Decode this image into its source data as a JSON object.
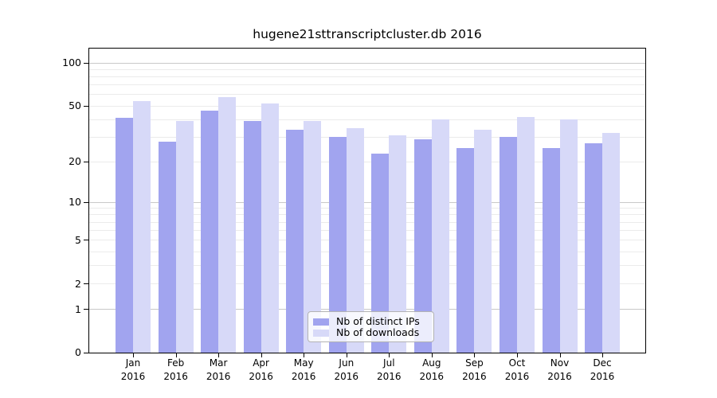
{
  "chart_data": {
    "type": "bar",
    "title": "hugene21sttranscriptcluster.db 2016",
    "categories": [
      "Jan",
      "Feb",
      "Mar",
      "Apr",
      "May",
      "Jun",
      "Jul",
      "Aug",
      "Sep",
      "Oct",
      "Nov",
      "Dec"
    ],
    "year_label": "2016",
    "series": [
      {
        "name": "Nb of distinct IPs",
        "color": "#a1a4ef",
        "values": [
          41,
          28,
          46,
          39,
          34,
          30,
          23,
          29,
          25,
          30,
          25,
          27
        ]
      },
      {
        "name": "Nb of downloads",
        "color": "#d7d9f8",
        "values": [
          54,
          39,
          58,
          52,
          39,
          35,
          31,
          40,
          34,
          42,
          40,
          32
        ]
      }
    ],
    "y_axis": {
      "scale": "log1p",
      "tick_values": [
        0,
        1,
        2,
        5,
        10,
        20,
        50,
        100
      ],
      "minor_gridlines": [
        2,
        3,
        4,
        5,
        6,
        7,
        8,
        9,
        20,
        30,
        40,
        50,
        60,
        70,
        80,
        90
      ],
      "major_gridlines": [
        1,
        10,
        100
      ],
      "ylim": [
        0,
        125
      ]
    },
    "legend": {
      "position": "bottom-center"
    },
    "colors": {
      "major_grid": "#c8c8c8",
      "minor_grid": "#ebebeb",
      "axis": "#000000",
      "background": "#ffffff"
    }
  }
}
